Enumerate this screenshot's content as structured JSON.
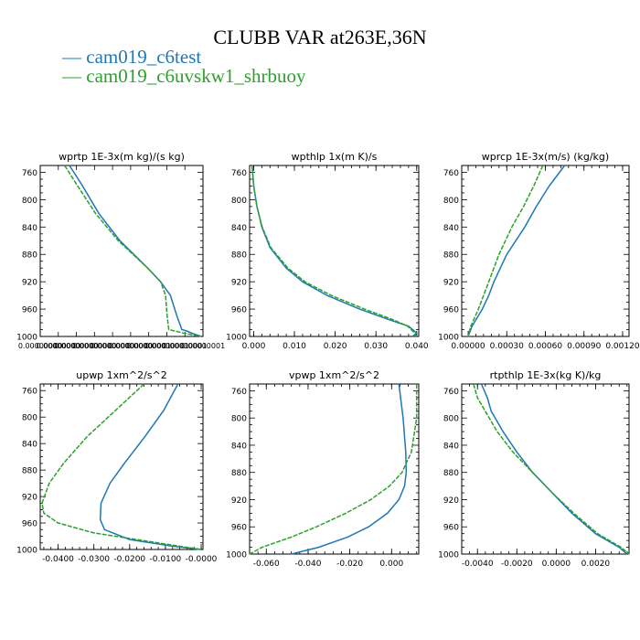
{
  "title": "CLUBB VAR at263E,36N",
  "legend": [
    {
      "label": "cam019_c6test",
      "color": "#1f77b4"
    },
    {
      "label": "cam019_c6uvskw1_shrbuoy",
      "color": "#2ca02c"
    }
  ],
  "chart_data": [
    {
      "type": "line",
      "title": "wprtp  1E-3x(m kg)/(s kg)",
      "ylim": [
        1000,
        750
      ],
      "yticks": [
        760,
        800,
        840,
        880,
        920,
        960,
        1000
      ],
      "xlim": [
        0.0,
        1e-08
      ],
      "xticks": [],
      "xtick_labels": [
        "0.00000000",
        "0.00000000",
        "0.00000000",
        "0.00000000",
        "0.00000000",
        "0.00000000",
        "0.00000001",
        "0.00000001",
        "0.00000001",
        "0.00000001"
      ],
      "x_numeric": false,
      "series": [
        {
          "color": "#1f77b4",
          "y": [
            750,
            780,
            820,
            860,
            900,
            920,
            940,
            970,
            990,
            992,
            996,
            1000
          ],
          "x": [
            1.8e-09,
            2.6e-09,
            3.6e-09,
            4.9e-09,
            6.6e-09,
            7.4e-09,
            8e-09,
            8.4e-09,
            8.7e-09,
            9e-09,
            9.4e-09,
            9.9e-09
          ]
        },
        {
          "color": "#2ca02c",
          "y": [
            750,
            780,
            820,
            860,
            900,
            920,
            940,
            970,
            990,
            995,
            1000
          ],
          "x": [
            1.5e-09,
            2.3e-09,
            3.4e-09,
            4.8e-09,
            6.6e-09,
            7.4e-09,
            7.7e-09,
            7.8e-09,
            7.9e-09,
            8.8e-09,
            9.9e-09
          ]
        }
      ]
    },
    {
      "type": "line",
      "title": "wpthlp  1x(m K)/s",
      "ylim": [
        1000,
        750
      ],
      "yticks": [
        760,
        800,
        840,
        880,
        920,
        960,
        1000
      ],
      "xlim": [
        -0.001,
        0.0405
      ],
      "xticks": [
        0.0,
        0.01,
        0.02,
        0.03,
        0.04
      ],
      "xtick_labels": [
        "0.000",
        "0.010",
        "0.020",
        "0.030",
        "0.040"
      ],
      "x_numeric": true,
      "series": [
        {
          "color": "#1f77b4",
          "y": [
            750,
            780,
            810,
            840,
            870,
            900,
            920,
            940,
            960,
            975,
            985,
            995,
            1000
          ],
          "x": [
            -0.0004,
            0.0,
            0.0008,
            0.002,
            0.004,
            0.008,
            0.012,
            0.018,
            0.026,
            0.033,
            0.038,
            0.04,
            0.039
          ]
        },
        {
          "color": "#2ca02c",
          "y": [
            750,
            780,
            810,
            840,
            870,
            900,
            920,
            940,
            960,
            975,
            985,
            995,
            1000
          ],
          "x": [
            -0.0004,
            0.0,
            0.0008,
            0.0021,
            0.0042,
            0.0084,
            0.0126,
            0.019,
            0.0272,
            0.034,
            0.0378,
            0.0395,
            0.04
          ]
        }
      ]
    },
    {
      "type": "line",
      "title": "wprcp  1E-3x(m/s) (kg/kg)",
      "ylim": [
        1000,
        750
      ],
      "yticks": [
        760,
        800,
        840,
        880,
        920,
        960,
        1000
      ],
      "xlim": [
        -5e-05,
        0.00125
      ],
      "xticks": [
        0.0,
        0.0003,
        0.0006,
        0.0009,
        0.0012
      ],
      "xtick_labels": [
        "0.00000",
        "0.00030",
        "0.00060",
        "0.00090",
        "0.00120"
      ],
      "x_numeric": true,
      "series": [
        {
          "color": "#1f77b4",
          "y": [
            750,
            780,
            810,
            840,
            880,
            920,
            940,
            960,
            985,
            1000
          ],
          "x": [
            0.00075,
            0.00063,
            0.00053,
            0.00044,
            0.0003,
            0.0002,
            0.00016,
            0.00011,
            3e-05,
            0.0
          ]
        },
        {
          "color": "#2ca02c",
          "y": [
            750,
            780,
            810,
            840,
            880,
            920,
            940,
            960,
            985,
            1000
          ],
          "x": [
            0.00058,
            0.00051,
            0.00043,
            0.00034,
            0.00024,
            0.00016,
            0.00012,
            8e-05,
            2e-05,
            0.0
          ]
        }
      ]
    },
    {
      "type": "line",
      "title": "upwp  1xm^2/s^2",
      "ylim": [
        1000,
        750
      ],
      "yticks": [
        760,
        800,
        840,
        880,
        920,
        960,
        1000
      ],
      "xlim": [
        -0.045,
        0.0005
      ],
      "xticks": [
        -0.04,
        -0.03,
        -0.02,
        -0.01,
        0.0
      ],
      "xtick_labels": [
        "-0.0400",
        "-0.0300",
        "-0.0200",
        "-0.0100",
        "-0.0000"
      ],
      "x_numeric": true,
      "series": [
        {
          "color": "#1f77b4",
          "y": [
            750,
            790,
            830,
            870,
            900,
            930,
            955,
            970,
            985,
            995,
            1000
          ],
          "x": [
            -0.0065,
            -0.0105,
            -0.0158,
            -0.0215,
            -0.0255,
            -0.028,
            -0.0282,
            -0.027,
            -0.02,
            -0.008,
            0.0
          ]
        },
        {
          "color": "#2ca02c",
          "y": [
            750,
            790,
            830,
            870,
            900,
            930,
            945,
            960,
            975,
            990,
            1000
          ],
          "x": [
            -0.016,
            -0.024,
            -0.032,
            -0.0385,
            -0.0425,
            -0.0445,
            -0.044,
            -0.04,
            -0.03,
            -0.012,
            0.0
          ]
        }
      ]
    },
    {
      "type": "line",
      "title": "vpwp  1xm^2/s^2",
      "ylim": [
        1000,
        750
      ],
      "yticks": [
        760,
        800,
        840,
        880,
        920,
        960,
        1000
      ],
      "xlim": [
        -0.068,
        0.013
      ],
      "xticks": [
        -0.06,
        -0.04,
        -0.02,
        0.0
      ],
      "xtick_labels": [
        "-0.060",
        "-0.040",
        "-0.020",
        "0.000"
      ],
      "x_numeric": true,
      "series": [
        {
          "color": "#1f77b4",
          "y": [
            750,
            800,
            850,
            880,
            900,
            920,
            940,
            960,
            975,
            990,
            1000
          ],
          "x": [
            0.0035,
            0.0055,
            0.0068,
            0.007,
            0.0062,
            0.0035,
            -0.002,
            -0.011,
            -0.021,
            -0.035,
            -0.048
          ]
        },
        {
          "color": "#2ca02c",
          "y": [
            750,
            800,
            850,
            880,
            900,
            920,
            940,
            960,
            975,
            990,
            1000
          ],
          "x": [
            0.012,
            0.012,
            0.0095,
            0.005,
            -0.001,
            -0.01,
            -0.022,
            -0.036,
            -0.048,
            -0.062,
            -0.068
          ]
        }
      ]
    },
    {
      "type": "line",
      "title": "rtpthlp  1E-3x(kg K)/kg",
      "ylim": [
        1000,
        750
      ],
      "yticks": [
        760,
        800,
        840,
        880,
        920,
        960,
        1000
      ],
      "xlim": [
        -0.0048,
        0.0037
      ],
      "xticks": [
        -0.004,
        -0.002,
        0.0,
        0.002
      ],
      "xtick_labels": [
        "-0.0040",
        "-0.0020",
        "0.0000",
        "0.0020"
      ],
      "x_numeric": true,
      "series": [
        {
          "color": "#1f77b4",
          "y": [
            750,
            770,
            790,
            820,
            850,
            880,
            910,
            940,
            970,
            990,
            1000
          ],
          "x": [
            -0.0038,
            -0.0035,
            -0.0033,
            -0.0027,
            -0.002,
            -0.0012,
            -0.0002,
            0.0008,
            0.002,
            0.0032,
            0.0036
          ]
        },
        {
          "color": "#2ca02c",
          "y": [
            750,
            770,
            790,
            820,
            850,
            880,
            910,
            940,
            970,
            990,
            1000
          ],
          "x": [
            -0.0042,
            -0.004,
            -0.0036,
            -0.003,
            -0.0022,
            -0.0012,
            -0.0002,
            0.0009,
            0.0021,
            0.0033,
            0.0037
          ]
        }
      ]
    }
  ]
}
